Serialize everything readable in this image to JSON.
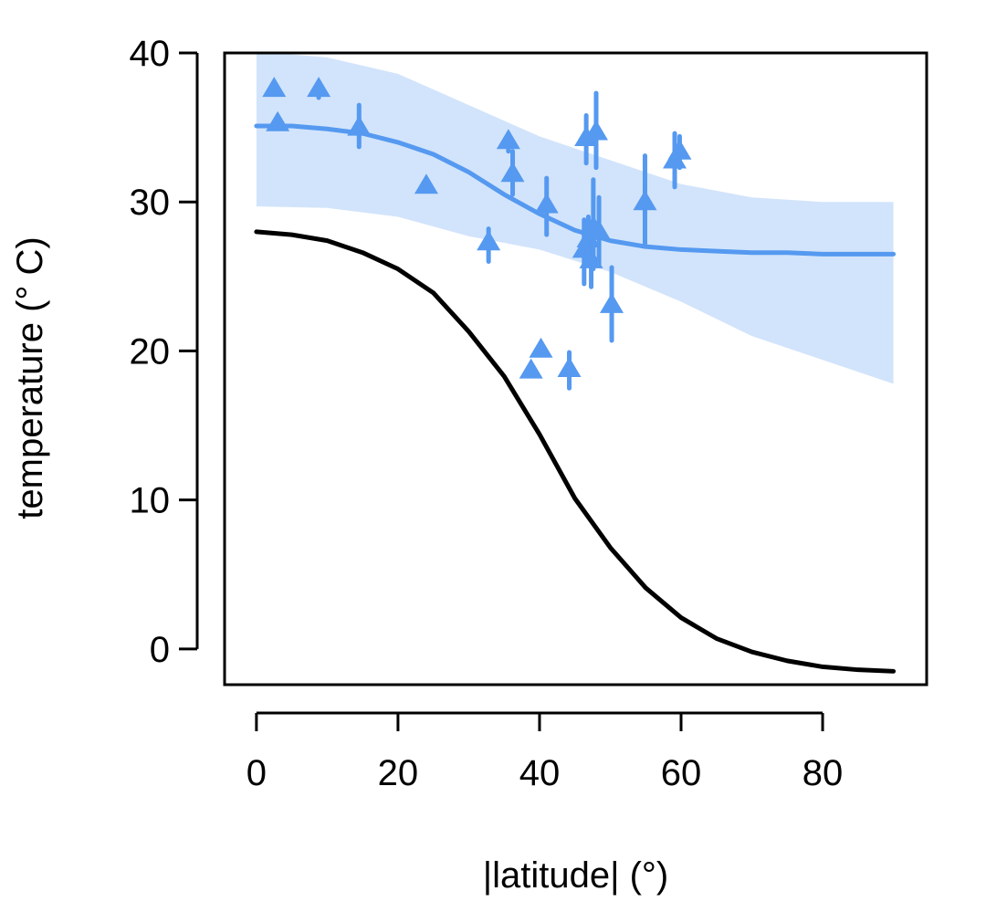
{
  "chart_data": {
    "type": "scatter",
    "title": "",
    "xlabel": "|latitude| (°)",
    "ylabel": "temperature (° C)",
    "xlim": [
      -4.5,
      94.7
    ],
    "ylim": [
      -2.4,
      40.0
    ],
    "xticks": [
      0,
      20,
      40,
      60,
      80
    ],
    "yticks": [
      0,
      10,
      20,
      30,
      40
    ],
    "grid": false,
    "legend": "none",
    "colors": {
      "points": "#5599f0",
      "fit_line": "#5599f0",
      "band": "#d2e4fb",
      "reference_line": "#000000"
    },
    "band": {
      "x": [
        0,
        10,
        20,
        30,
        40,
        50,
        60,
        70,
        80,
        90
      ],
      "upper": [
        40.1,
        39.7,
        38.6,
        36.5,
        34.4,
        32.8,
        31.2,
        30.3,
        30.0,
        30.0
      ],
      "lower": [
        29.7,
        29.6,
        29.0,
        27.7,
        26.8,
        25.3,
        23.3,
        21.0,
        19.4,
        17.8
      ]
    },
    "series": [
      {
        "kind": "line",
        "x": [
          0,
          5,
          10,
          15,
          20,
          25,
          30,
          35,
          40,
          45,
          50,
          55,
          60,
          65,
          70,
          75,
          80,
          85,
          90
        ],
        "y": [
          35.1,
          35.1,
          34.9,
          34.6,
          34.0,
          33.2,
          32.0,
          30.5,
          29.2,
          28.1,
          27.4,
          27.0,
          26.8,
          26.7,
          26.6,
          26.6,
          26.5,
          26.5,
          26.5
        ]
      },
      {
        "kind": "line",
        "x": [
          0,
          5,
          10,
          15,
          20,
          25,
          30,
          35,
          40,
          45,
          50,
          55,
          60,
          65,
          70,
          75,
          80,
          85,
          90
        ],
        "y": [
          28.0,
          27.8,
          27.4,
          26.6,
          25.5,
          23.9,
          21.3,
          18.3,
          14.4,
          10.1,
          6.8,
          4.1,
          2.1,
          0.7,
          -0.2,
          -0.8,
          -1.2,
          -1.4,
          -1.5
        ]
      },
      {
        "kind": "points",
        "marker": "triangle",
        "points": [
          {
            "x": 2.5,
            "y": 37.6,
            "err": [
              37.6,
              37.6
            ]
          },
          {
            "x": 3.0,
            "y": 35.3,
            "err": [
              35.3,
              35.3
            ]
          },
          {
            "x": 8.8,
            "y": 37.6,
            "err": [
              37.0,
              37.6
            ]
          },
          {
            "x": 14.5,
            "y": 35.0,
            "err": [
              33.7,
              36.5
            ]
          },
          {
            "x": 24.0,
            "y": 31.1,
            "err": [
              31.1,
              31.1
            ]
          },
          {
            "x": 32.8,
            "y": 27.3,
            "err": [
              26.0,
              28.2
            ]
          },
          {
            "x": 35.6,
            "y": 34.1,
            "err": [
              33.4,
              34.6
            ]
          },
          {
            "x": 36.2,
            "y": 31.9,
            "err": [
              30.5,
              33.4
            ]
          },
          {
            "x": 38.8,
            "y": 18.7,
            "err": [
              18.7,
              18.7
            ]
          },
          {
            "x": 40.2,
            "y": 20.1,
            "err": [
              20.1,
              20.1
            ]
          },
          {
            "x": 41.0,
            "y": 29.8,
            "err": [
              27.8,
              31.6
            ]
          },
          {
            "x": 44.2,
            "y": 18.8,
            "err": [
              17.5,
              19.9
            ]
          },
          {
            "x": 46.3,
            "y": 26.8,
            "err": [
              24.5,
              28.8
            ]
          },
          {
            "x": 46.6,
            "y": 34.3,
            "err": [
              32.6,
              35.8
            ]
          },
          {
            "x": 46.9,
            "y": 27.5,
            "err": [
              25.8,
              29.0
            ]
          },
          {
            "x": 47.3,
            "y": 26.1,
            "err": [
              24.3,
              27.6
            ]
          },
          {
            "x": 47.6,
            "y": 28.3,
            "err": [
              25.5,
              31.5
            ]
          },
          {
            "x": 48.0,
            "y": 34.7,
            "err": [
              32.3,
              37.3
            ]
          },
          {
            "x": 48.4,
            "y": 28.0,
            "err": [
              25.8,
              30.3
            ]
          },
          {
            "x": 50.2,
            "y": 23.1,
            "err": [
              20.7,
              25.6
            ]
          },
          {
            "x": 54.9,
            "y": 30.0,
            "err": [
              27.0,
              33.1
            ]
          },
          {
            "x": 59.1,
            "y": 32.8,
            "err": [
              31.0,
              34.6
            ]
          },
          {
            "x": 59.8,
            "y": 33.4,
            "err": [
              32.3,
              34.4
            ]
          }
        ]
      }
    ]
  }
}
